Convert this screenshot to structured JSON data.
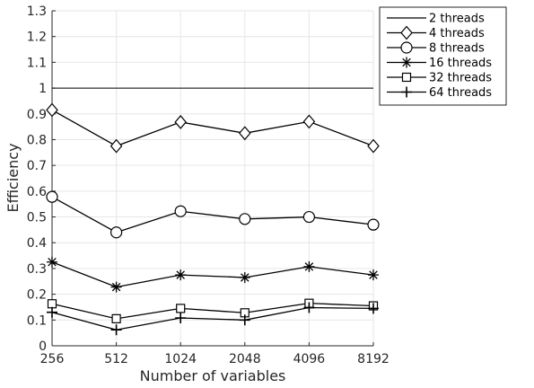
{
  "chart_data": {
    "type": "line",
    "xlabel": "Number of variables",
    "ylabel": "Efficiency",
    "categories": [
      "256",
      "512",
      "1024",
      "2048",
      "4096",
      "8192"
    ],
    "ylim": [
      0,
      1.3
    ],
    "yticks": [
      "0",
      "0.1",
      "0.2",
      "0.3",
      "0.4",
      "0.5",
      "0.6",
      "0.7",
      "0.8",
      "0.9",
      "1",
      "1.1",
      "1.2",
      "1.3"
    ],
    "grid": true,
    "legend_position": "outside-top-right",
    "colors": {
      "line": "#000000",
      "grid": "#e6e6e6",
      "axis": "#262626"
    },
    "series": [
      {
        "name": "2 threads",
        "marker": "none",
        "values": [
          1,
          1,
          1,
          1,
          1,
          1
        ]
      },
      {
        "name": "4 threads",
        "marker": "diamond",
        "values": [
          0.915,
          0.775,
          0.868,
          0.825,
          0.87,
          0.775
        ]
      },
      {
        "name": "8 threads",
        "marker": "circle",
        "values": [
          0.578,
          0.44,
          0.522,
          0.492,
          0.5,
          0.47
        ]
      },
      {
        "name": "16 threads",
        "marker": "asterisk",
        "values": [
          0.325,
          0.228,
          0.275,
          0.265,
          0.307,
          0.275
        ]
      },
      {
        "name": "32 threads",
        "marker": "square",
        "values": [
          0.163,
          0.105,
          0.145,
          0.128,
          0.165,
          0.155
        ]
      },
      {
        "name": "64 threads",
        "marker": "plus",
        "values": [
          0.13,
          0.062,
          0.108,
          0.1,
          0.148,
          0.145
        ]
      }
    ]
  }
}
